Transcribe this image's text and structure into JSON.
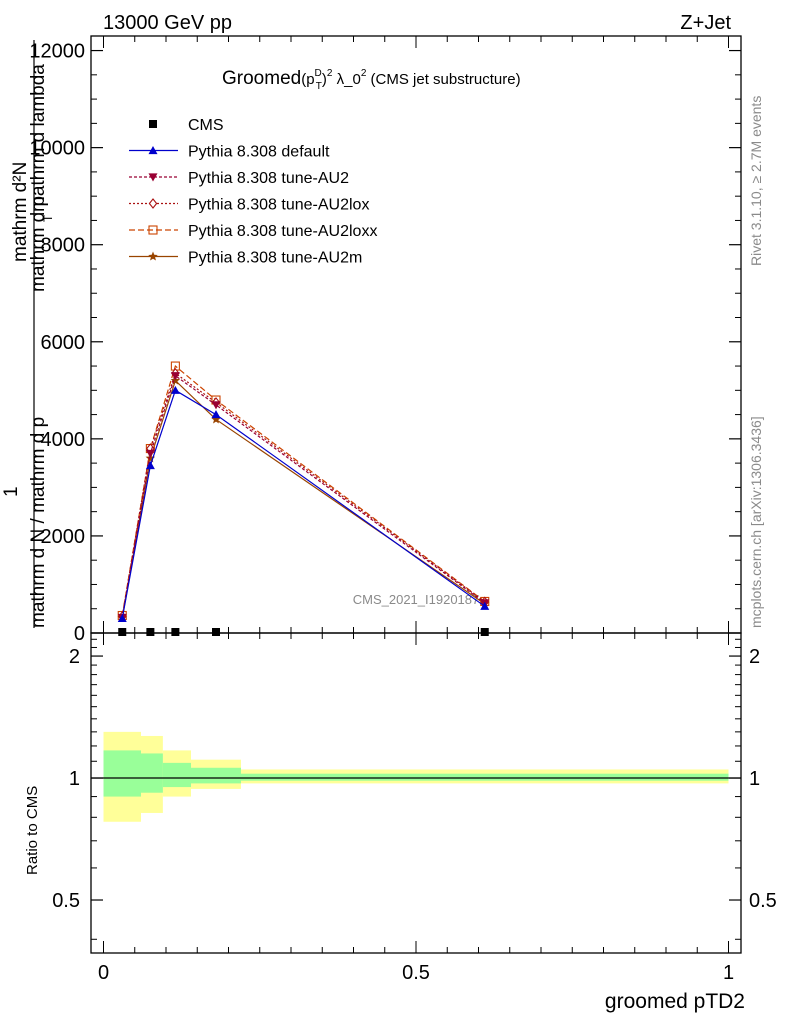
{
  "header": {
    "energy": "13000 GeV pp",
    "process": "Z+Jet",
    "plot_title_main": "Groomed",
    "plot_title_p": "(p",
    "plot_title_sup_d": "D",
    "plot_title_sub_t": "T",
    "plot_title_close": ")",
    "plot_title_sup_2": "2",
    "plot_title_rest": " λ_0",
    "plot_title_sup_2b": "2",
    "plot_title_tail": " (CMS jet substructure)"
  },
  "side_labels": {
    "rivet": "Rivet 3.1.10, ≥ 2.7M events",
    "mcplots": "mcplots.cern.ch [arXiv:1306.3436]"
  },
  "watermark": "CMS_2021_I1920187",
  "y_label_main": {
    "numerator_top": "mathrm d²N",
    "numerator_bottom": "mathrm d p",
    "numerator_tail": "mathrm d lambda",
    "one": "1",
    "denominator": "mathrm d N / mathrm d p",
    "sub_t": "T"
  },
  "y_label_ratio": "Ratio to CMS",
  "x_label": "groomed pTD2",
  "legend": [
    {
      "label": "CMS",
      "color": "#000000",
      "marker": "square-filled",
      "dash": ""
    },
    {
      "label": "Pythia 8.308 default",
      "color": "#0000cc",
      "marker": "triangle-up",
      "dash": ""
    },
    {
      "label": "Pythia 8.308 tune-AU2",
      "color": "#990033",
      "marker": "triangle-down",
      "dash": "3,2"
    },
    {
      "label": "Pythia 8.308 tune-AU2lox",
      "color": "#aa1111",
      "marker": "diamond-open",
      "dash": "2,2"
    },
    {
      "label": "Pythia 8.308 tune-AU2loxx",
      "color": "#cc4400",
      "marker": "square-open",
      "dash": "6,3"
    },
    {
      "label": "Pythia 8.308 tune-AU2m",
      "color": "#994400",
      "marker": "star",
      "dash": ""
    }
  ],
  "chart_data": [
    {
      "type": "line",
      "panel": "main",
      "x": [
        0.03,
        0.075,
        0.115,
        0.18,
        0.61
      ],
      "series": [
        {
          "name": "CMS",
          "values": [
            0,
            0,
            0,
            0,
            0
          ]
        },
        {
          "name": "Pythia 8.308 default",
          "values": [
            300,
            3450,
            5000,
            4500,
            550
          ]
        },
        {
          "name": "Pythia 8.308 tune-AU2",
          "values": [
            320,
            3700,
            5300,
            4700,
            620
          ]
        },
        {
          "name": "Pythia 8.308 tune-AU2lox",
          "values": [
            340,
            3800,
            5350,
            4750,
            640
          ]
        },
        {
          "name": "Pythia 8.308 tune-AU2loxx",
          "values": [
            360,
            3800,
            5500,
            4800,
            650
          ]
        },
        {
          "name": "Pythia 8.308 tune-AU2m",
          "values": [
            310,
            3600,
            5200,
            4400,
            600
          ]
        }
      ],
      "xlim": [
        -0.02,
        1.02
      ],
      "ylim": [
        0,
        12300
      ],
      "yticks": [
        0,
        2000,
        4000,
        6000,
        8000,
        10000,
        12000
      ],
      "ytick_labels": [
        "0",
        "2000",
        "4000",
        "6000",
        "8000",
        "10000",
        "12000"
      ]
    },
    {
      "type": "area",
      "panel": "ratio",
      "bin_edges": [
        0,
        0.06,
        0.095,
        0.14,
        0.22,
        1.0
      ],
      "band_yellow": [
        [
          0.78,
          1.3
        ],
        [
          0.82,
          1.27
        ],
        [
          0.9,
          1.17
        ],
        [
          0.94,
          1.11
        ],
        [
          0.97,
          1.05
        ]
      ],
      "band_green": [
        [
          0.9,
          1.17
        ],
        [
          0.92,
          1.15
        ],
        [
          0.95,
          1.09
        ],
        [
          0.97,
          1.06
        ],
        [
          0.985,
          1.025
        ]
      ],
      "reference_line": 1,
      "xlim": [
        -0.02,
        1.02
      ],
      "ylim": [
        0.37,
        2.28
      ],
      "log_scale": true,
      "yticks": [
        0.5,
        1,
        2
      ],
      "ytick_labels": [
        "0.5",
        "1",
        "2"
      ],
      "xticks": [
        0,
        0.5,
        1
      ],
      "xtick_labels": [
        "0",
        "0.5",
        "1"
      ]
    }
  ]
}
